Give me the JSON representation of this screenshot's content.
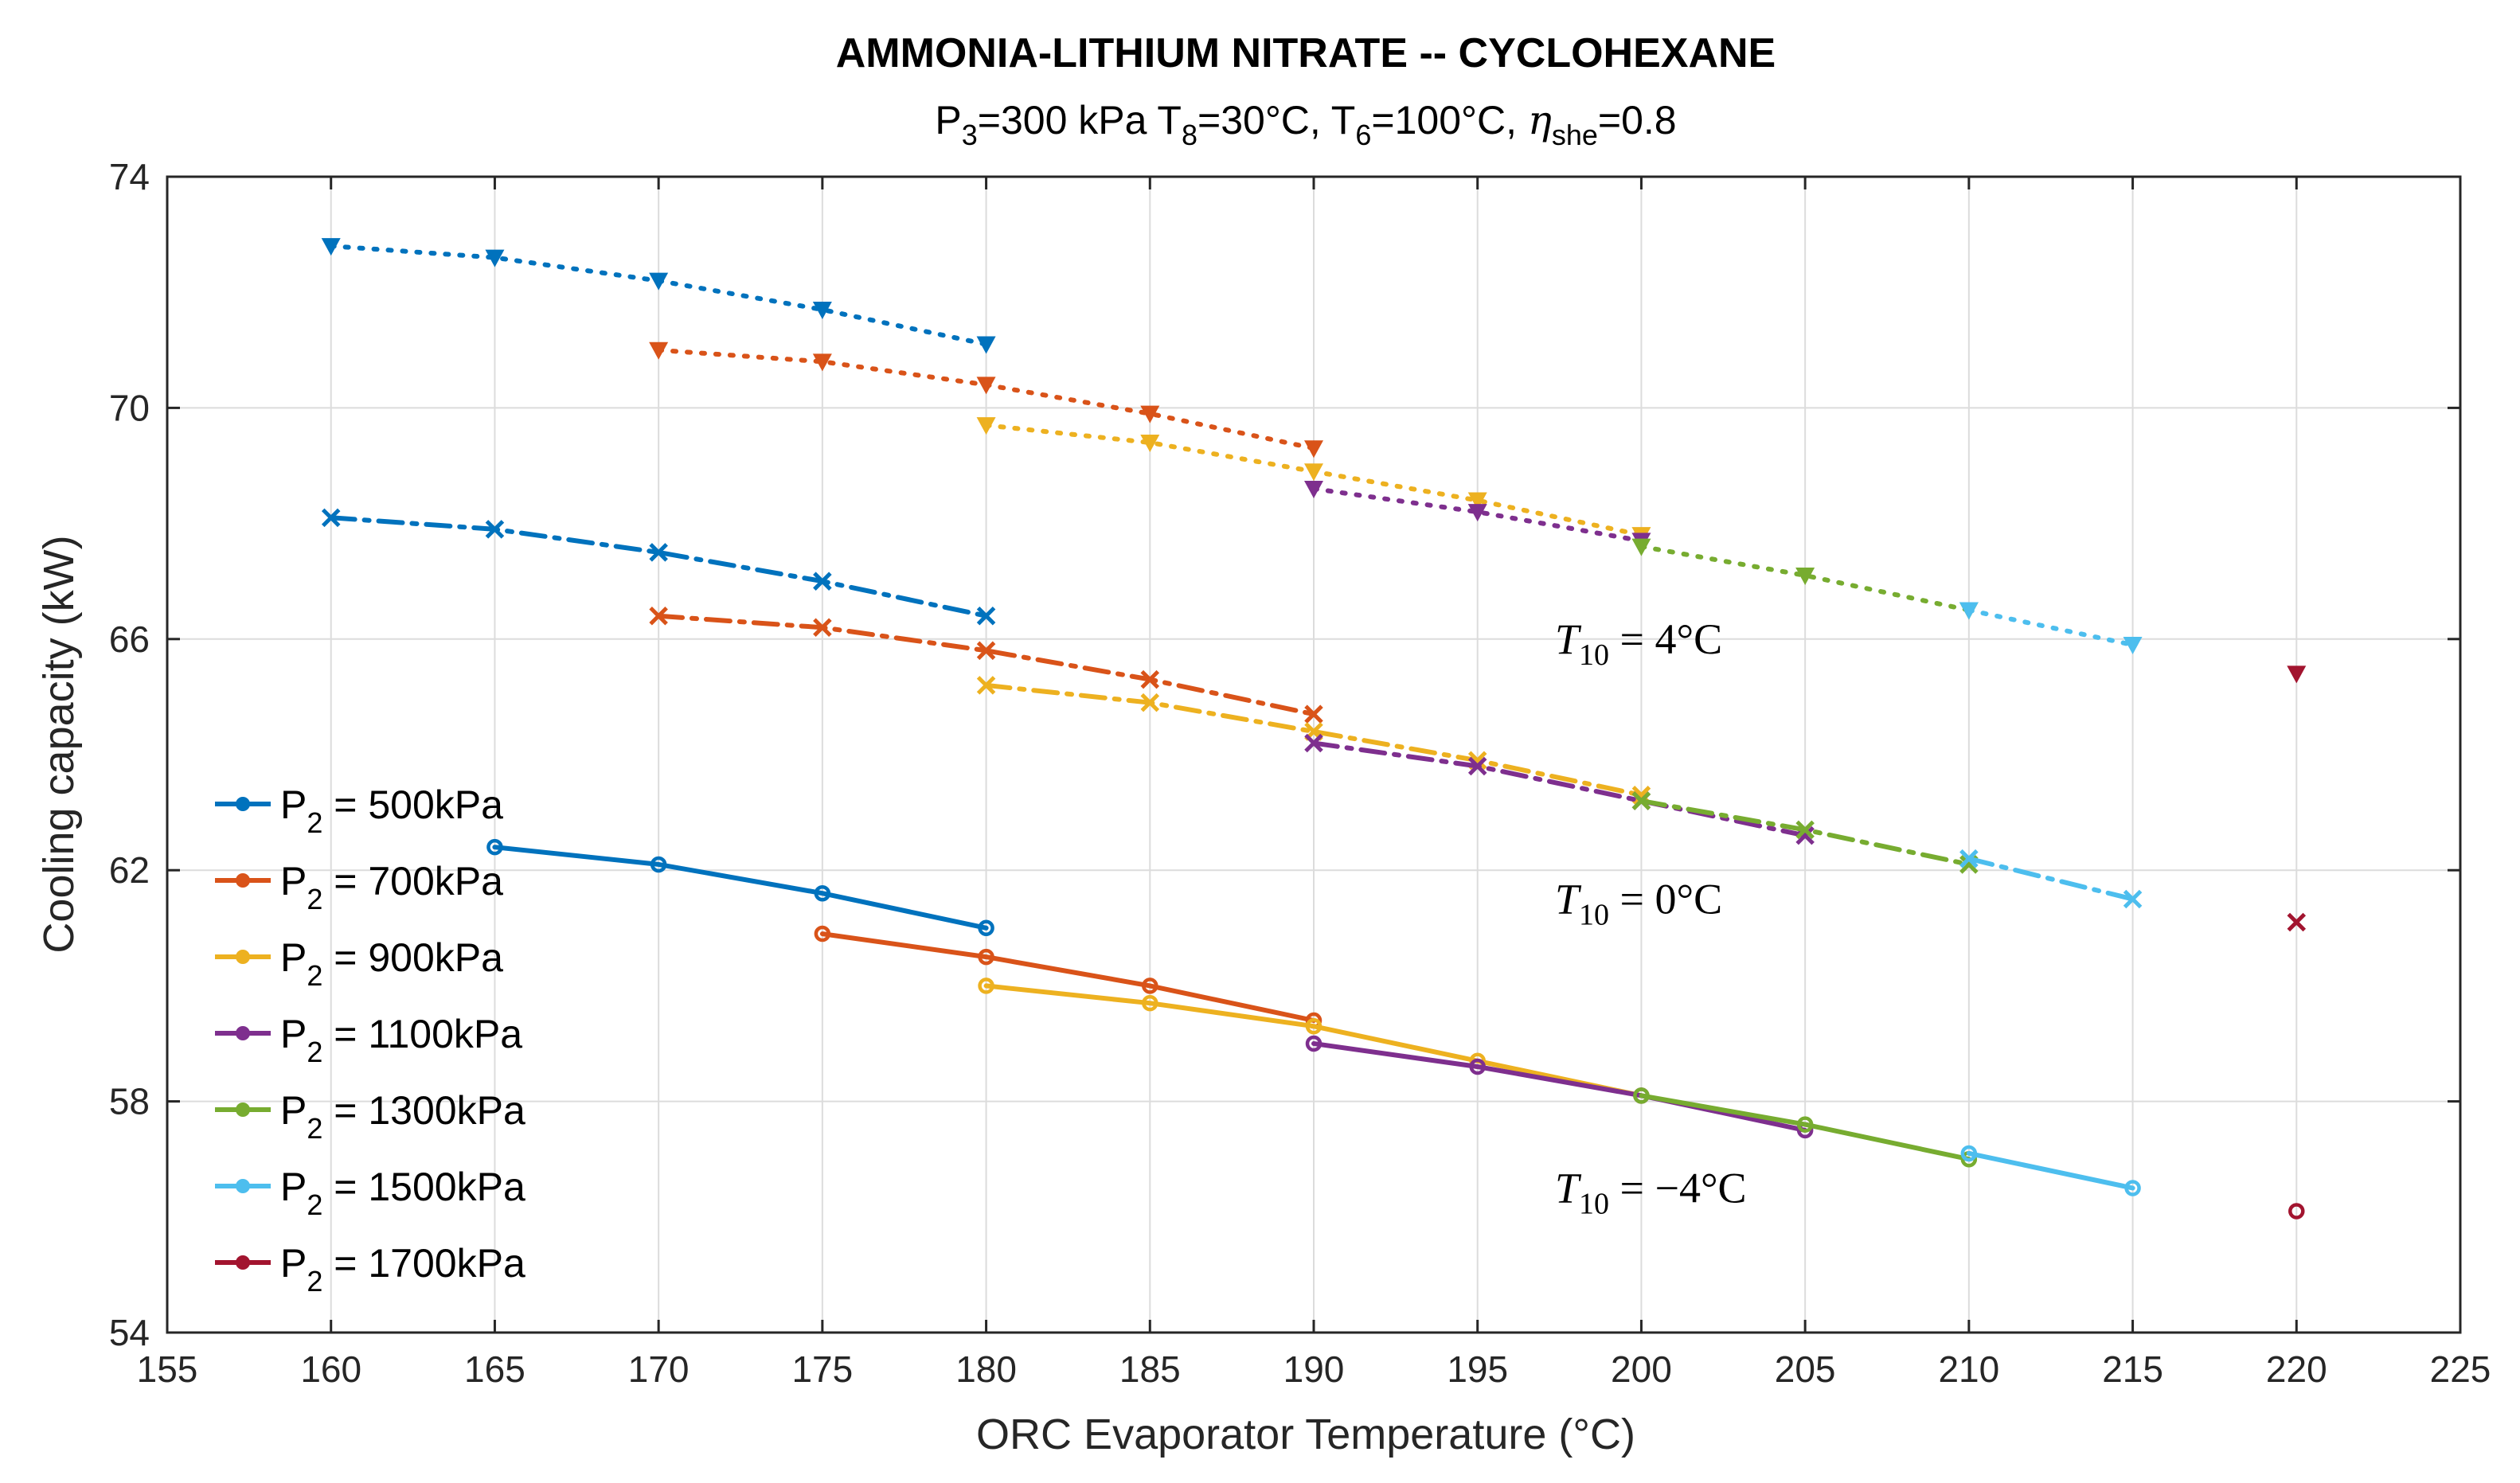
{
  "chart_data": {
    "type": "line",
    "title": "AMMONIA-LITHIUM NITRATE -- CYCLOHEXANE",
    "subtitle": {
      "p3": "P",
      "p3_sub": "3",
      "p3_rest": "=300 kPa T",
      "t8_sub": "8",
      "t8_rest": "=30°C, T",
      "t6_sub": "6",
      "t6_rest": "=100°C, ",
      "eta": "η",
      "eta_sub": "she",
      "eta_rest": "=0.8"
    },
    "xlabel": "ORC Evaporator Temperature (°C)",
    "ylabel": "Cooling capacity (kW)",
    "xlim": [
      155,
      225
    ],
    "ylim": [
      54,
      74
    ],
    "xticks": [
      155,
      160,
      165,
      170,
      175,
      180,
      185,
      190,
      195,
      200,
      205,
      210,
      215,
      220,
      225
    ],
    "yticks": [
      54,
      58,
      62,
      66,
      70,
      74
    ],
    "grid": true,
    "legend_position": "bottom-left",
    "annotations": [
      {
        "label": "T",
        "sub": "10",
        "text": " = 4°C",
        "x": 197,
        "y": 66
      },
      {
        "label": "T",
        "sub": "10",
        "text": " = 0°C",
        "x": 197,
        "y": 61.5
      },
      {
        "label": "T",
        "sub": "10",
        "text": " = −4°C",
        "x": 197,
        "y": 56.5
      }
    ],
    "series": [
      {
        "name": "P",
        "name_sub": "2",
        "name_rest": " = 500kPa",
        "color": "#0072BD",
        "x": [
          160,
          165,
          170,
          175,
          180
        ],
        "T10_4": [
          72.8,
          72.6,
          72.2,
          71.7,
          71.1
        ],
        "T10_0": [
          68.1,
          67.9,
          67.5,
          67.0,
          66.4
        ],
        "T10_m4": [
          null,
          62.4,
          62.1,
          61.6,
          61.0
        ]
      },
      {
        "name": "P",
        "name_sub": "2",
        "name_rest": " = 700kPa",
        "color": "#D95319",
        "x": [
          170,
          175,
          180,
          185,
          190
        ],
        "T10_4": [
          71.0,
          70.8,
          70.4,
          69.9,
          69.3
        ],
        "T10_0": [
          66.4,
          66.2,
          65.8,
          65.3,
          64.7
        ],
        "T10_m4": [
          null,
          60.9,
          60.5,
          60.0,
          59.4
        ]
      },
      {
        "name": "P",
        "name_sub": "2",
        "name_rest": " = 900kPa",
        "color": "#EDB120",
        "x": [
          180,
          185,
          190,
          195,
          200
        ],
        "T10_4": [
          69.7,
          69.4,
          68.9,
          68.4,
          67.8
        ],
        "T10_0": [
          65.2,
          64.9,
          64.4,
          63.9,
          63.3
        ],
        "T10_m4": [
          60.0,
          59.7,
          59.3,
          58.7,
          58.1
        ]
      },
      {
        "name": "P",
        "name_sub": "2",
        "name_rest": " = 1100kPa",
        "color": "#7E2F8E",
        "x": [
          190,
          195,
          200,
          205
        ],
        "T10_4": [
          68.6,
          68.2,
          67.7,
          null
        ],
        "T10_0": [
          64.2,
          63.8,
          63.2,
          62.6
        ],
        "T10_m4": [
          59.0,
          58.6,
          58.1,
          57.5
        ]
      },
      {
        "name": "P",
        "name_sub": "2",
        "name_rest": " = 1300kPa",
        "color": "#77AC30",
        "x": [
          200,
          205,
          210
        ],
        "T10_4": [
          67.6,
          67.1,
          66.5
        ],
        "T10_0": [
          63.2,
          62.7,
          62.1
        ],
        "T10_m4": [
          58.1,
          57.6,
          57.0
        ]
      },
      {
        "name": "P",
        "name_sub": "2",
        "name_rest": " = 1500kPa",
        "color": "#4DBEEE",
        "x": [
          210,
          215
        ],
        "T10_4": [
          66.5,
          65.9
        ],
        "T10_0": [
          62.2,
          61.5
        ],
        "T10_m4": [
          57.1,
          56.5
        ]
      },
      {
        "name": "P",
        "name_sub": "2",
        "name_rest": " = 1700kPa",
        "color": "#A2142F",
        "x": [
          220
        ],
        "T10_4": [
          65.4
        ],
        "T10_0": [
          61.1
        ],
        "T10_m4": [
          56.1
        ]
      }
    ]
  }
}
